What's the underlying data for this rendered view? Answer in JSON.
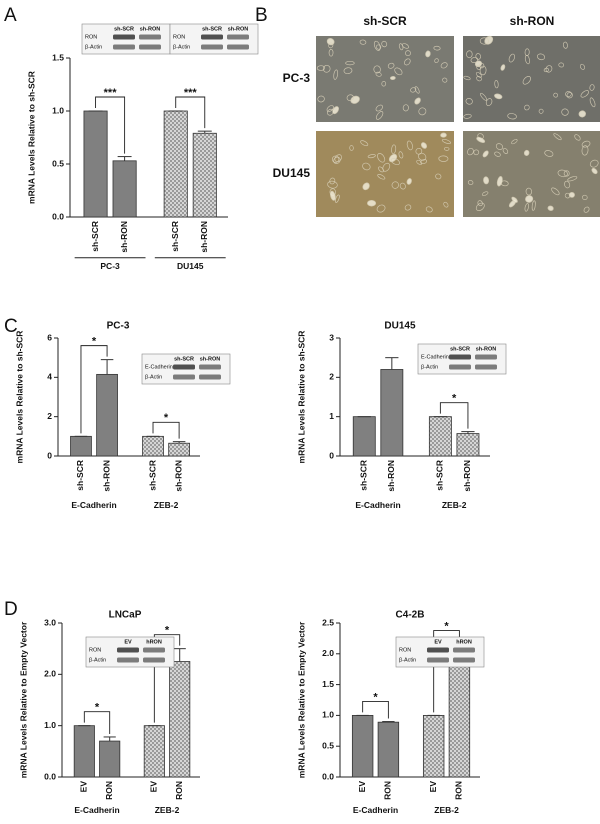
{
  "chart_data": [
    {
      "type": "bar",
      "panel": "A",
      "ylabel": "mRNA Levels Relative to sh-SCR",
      "ylim": [
        0,
        1.5
      ],
      "yticks": [
        {
          "value": 0,
          "label": "0.0"
        },
        0.5,
        {
          "value": 1,
          "label": "1.0"
        },
        1.5
      ],
      "color": "#808080",
      "group_rule": true,
      "groups": [
        {
          "name": "PC-3",
          "pattern": "solid",
          "categories": [
            "sh-SCR",
            "sh-RON"
          ],
          "values": [
            1,
            0.53
          ],
          "errors": [
            0,
            0.04
          ],
          "significance": "***"
        },
        {
          "name": "DU145",
          "pattern": "checker",
          "categories": [
            "sh-SCR",
            "sh-RON"
          ],
          "values": [
            1,
            0.79
          ],
          "errors": [
            0,
            0.02
          ],
          "significance": "***"
        }
      ],
      "blots": [
        {
          "columns": [
            "sh-SCR",
            "sh-RON"
          ],
          "rows": [
            "RON",
            "β-Actin"
          ]
        },
        {
          "columns": [
            "sh-SCR",
            "sh-RON"
          ],
          "rows": [
            "RON",
            "β-Actin"
          ]
        }
      ]
    },
    {
      "type": "micrograph",
      "panel": "B",
      "columns": [
        "sh-SCR",
        "sh-RON"
      ],
      "rows": [
        "PC-3",
        "DU145"
      ]
    },
    {
      "type": "bar",
      "panel": "C",
      "title": "PC-3",
      "ylabel": "mRNA Levels Relative to sh-SCR",
      "ylim": [
        0,
        6
      ],
      "yticks": [
        0,
        2,
        4,
        6
      ],
      "color": "#808080",
      "group_rule": false,
      "groups": [
        {
          "name": "E-Cadherin",
          "pattern": "solid",
          "categories": [
            "sh-SCR",
            "sh-RON"
          ],
          "values": [
            1,
            4.15
          ],
          "errors": [
            0,
            0.75
          ],
          "significance": "*"
        },
        {
          "name": "ZEB-2",
          "pattern": "checker",
          "categories": [
            "sh-SCR",
            "sh-RON"
          ],
          "values": [
            1,
            0.65
          ],
          "errors": [
            0,
            0.08
          ],
          "significance": "*"
        }
      ],
      "blots": [
        {
          "columns": [
            "sh-SCR",
            "sh-RON"
          ],
          "rows": [
            "E-Cadherin",
            "β-Actin"
          ]
        }
      ]
    },
    {
      "type": "bar",
      "title": "DU145",
      "ylabel": "mRNA Levels Relative to sh-SCR",
      "ylim": [
        0,
        3
      ],
      "yticks": [
        0,
        1,
        2,
        3
      ],
      "color": "#808080",
      "group_rule": false,
      "groups": [
        {
          "name": "E-Cadherin",
          "pattern": "solid",
          "categories": [
            "sh-SCR",
            "sh-RON"
          ],
          "values": [
            1,
            2.2
          ],
          "errors": [
            0,
            0.3
          ]
        },
        {
          "name": "ZEB-2",
          "pattern": "checker",
          "categories": [
            "sh-SCR",
            "sh-RON"
          ],
          "values": [
            1,
            0.57
          ],
          "errors": [
            0,
            0.05
          ],
          "significance": "*"
        }
      ],
      "blots": [
        {
          "columns": [
            "sh-SCR",
            "sh-RON"
          ],
          "rows": [
            "E-Cadherin",
            "β-Actin"
          ]
        }
      ]
    },
    {
      "type": "bar",
      "panel": "D",
      "title": "LNCaP",
      "ylabel": "mRNA Levels Relative to Empty Vector",
      "ylim": [
        0,
        3
      ],
      "yticks": [
        {
          "value": 0,
          "label": "0.0"
        },
        {
          "value": 1,
          "label": "1.0"
        },
        {
          "value": 2,
          "label": "2.0"
        },
        {
          "value": 3,
          "label": "3.0"
        }
      ],
      "color": "#808080",
      "group_rule": false,
      "groups": [
        {
          "name": "E-Cadherin",
          "pattern": "solid",
          "categories": [
            "EV",
            "RON"
          ],
          "values": [
            1,
            0.7
          ],
          "errors": [
            0,
            0.08
          ],
          "significance": "*"
        },
        {
          "name": "ZEB-2",
          "pattern": "checker",
          "categories": [
            "EV",
            "RON"
          ],
          "values": [
            1,
            2.25
          ],
          "errors": [
            0,
            0.25
          ],
          "significance": "*"
        }
      ],
      "blots": [
        {
          "columns": [
            "EV",
            "hRON"
          ],
          "rows": [
            "RON",
            "β-Actin"
          ]
        }
      ]
    },
    {
      "type": "bar",
      "title": "C4-2B",
      "ylabel": "mRNA Levels Relative to Empty Vector",
      "ylim": [
        0,
        2.5
      ],
      "yticks": [
        {
          "value": 0,
          "label": "0.0"
        },
        0.5,
        {
          "value": 1,
          "label": "1.0"
        },
        1.5,
        {
          "value": 2,
          "label": "2.0"
        },
        2.5
      ],
      "color": "#808080",
      "group_rule": false,
      "groups": [
        {
          "name": "E-Cadherin",
          "pattern": "solid",
          "categories": [
            "EV",
            "RON"
          ],
          "values": [
            1,
            0.89
          ],
          "errors": [
            0,
            0.01
          ],
          "significance": "*"
        },
        {
          "name": "ZEB-2",
          "pattern": "checker",
          "categories": [
            "EV",
            "RON"
          ],
          "values": [
            1,
            1.9
          ],
          "errors": [
            0,
            0.25
          ],
          "significance": "*"
        }
      ],
      "blots": [
        {
          "columns": [
            "EV",
            "hRON"
          ],
          "rows": [
            "RON",
            "β-Actin"
          ]
        }
      ]
    }
  ]
}
